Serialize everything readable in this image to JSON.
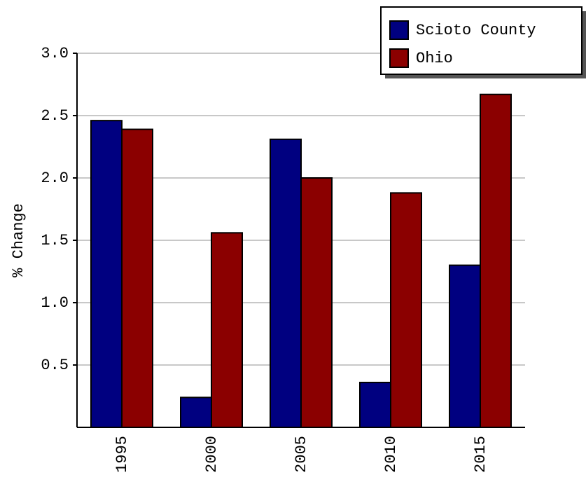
{
  "chart_data": {
    "type": "bar",
    "y_label": "% Change",
    "categories": [
      "1995",
      "2000",
      "2005",
      "2010",
      "2015"
    ],
    "series": [
      {
        "name": "Scioto County",
        "color": "#000080",
        "values": [
          2.46,
          0.24,
          2.31,
          0.36,
          1.3
        ]
      },
      {
        "name": "Ohio",
        "color": "#8b0000",
        "values": [
          2.39,
          1.56,
          2.0,
          1.88,
          2.67
        ]
      }
    ],
    "ylim": [
      0,
      3
    ],
    "yticks": [
      0.5,
      {
        "value": 1,
        "label": "1.0"
      },
      1.5,
      {
        "value": 2,
        "label": "2.0"
      },
      2.5,
      {
        "value": 3,
        "label": "3.0"
      }
    ],
    "grid": true,
    "legend": "top-right"
  }
}
